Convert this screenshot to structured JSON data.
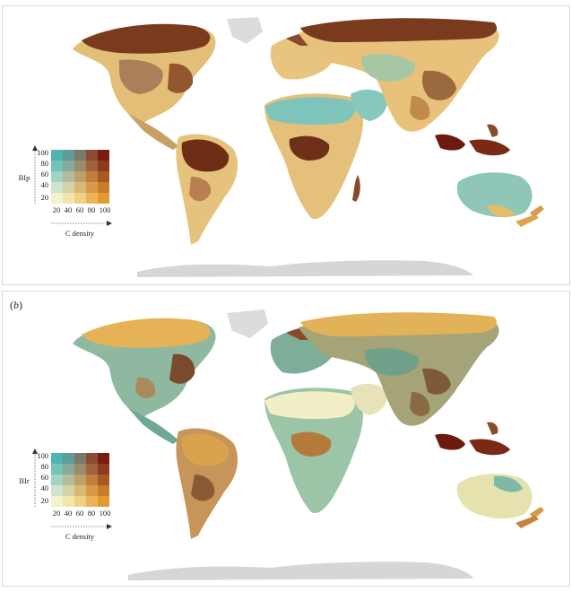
{
  "panels": [
    {
      "id": "a",
      "label": "",
      "legend": {
        "y_label": "BIp",
        "x_label": "C density",
        "y_ticks": [
          "100",
          "80",
          "60",
          "40",
          "20"
        ],
        "x_ticks": [
          "20",
          "40",
          "60",
          "80",
          "100"
        ]
      }
    },
    {
      "id": "b",
      "label": "b",
      "legend": {
        "y_label": "BIr",
        "x_label": "C density",
        "y_ticks": [
          "100",
          "80",
          "60",
          "40",
          "20"
        ],
        "x_ticks": [
          "20",
          "40",
          "60",
          "80",
          "100"
        ]
      }
    }
  ],
  "bivariate_palette": [
    [
      "#4fb3b0",
      "#5f9c98",
      "#7a7a6c",
      "#8a4a34",
      "#7a1d10"
    ],
    [
      "#74c3b8",
      "#86ab98",
      "#9a8b6a",
      "#a0643c",
      "#8e3a1c"
    ],
    [
      "#a3d3c2",
      "#b1bd9c",
      "#bfa06c",
      "#c07e3e",
      "#a95a22"
    ],
    [
      "#cfe4cc",
      "#d6d2a4",
      "#dcb878",
      "#d99a48",
      "#c67c28"
    ],
    [
      "#f2f2cf",
      "#f2e6ac",
      "#f0d084",
      "#ebb458",
      "#e19a30"
    ]
  ],
  "colors": {
    "antarctica": "#d4d4d4",
    "greenland": "#d9d9d9",
    "map_a_north": "#7a3a1e",
    "map_a_tropics": "#6e3018",
    "map_a_desert": "#7fc4ba",
    "map_a_default": "#e8c27a",
    "map_b_north": "#e5b355",
    "map_b_tropics": "#b47a3a",
    "map_b_desert": "#f2efc6",
    "map_b_default": "#8fb8a0",
    "indonesia_hotspot": "#6a1a0e"
  }
}
